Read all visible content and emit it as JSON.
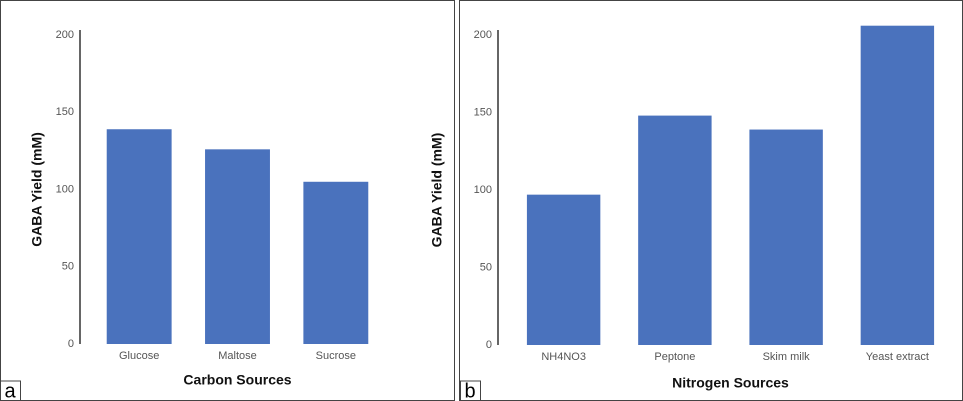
{
  "chart_data": [
    {
      "type": "bar",
      "panel_label": "a",
      "x_label": "Carbon Sources",
      "y_label": "GABA Yield (mM)",
      "categories": [
        "Glucose",
        "Maltose",
        "Sucrose"
      ],
      "values": [
        139,
        126,
        105
      ],
      "color": "#4a72bd",
      "ylim": [
        0,
        200
      ],
      "yticks": [
        0,
        50,
        100,
        150,
        200
      ],
      "grid": false
    },
    {
      "type": "bar",
      "panel_label": "b",
      "x_label": "Nitrogen Sources",
      "y_label": "GABA Yield (mM)",
      "categories": [
        "NH4NO3",
        "Peptone",
        "Skim milk",
        "Yeast extract"
      ],
      "values": [
        97,
        148,
        139,
        206
      ],
      "color": "#4a72bd",
      "ylim": [
        0,
        200
      ],
      "yticks": [
        0,
        50,
        100,
        150,
        200
      ],
      "grid": false
    }
  ]
}
